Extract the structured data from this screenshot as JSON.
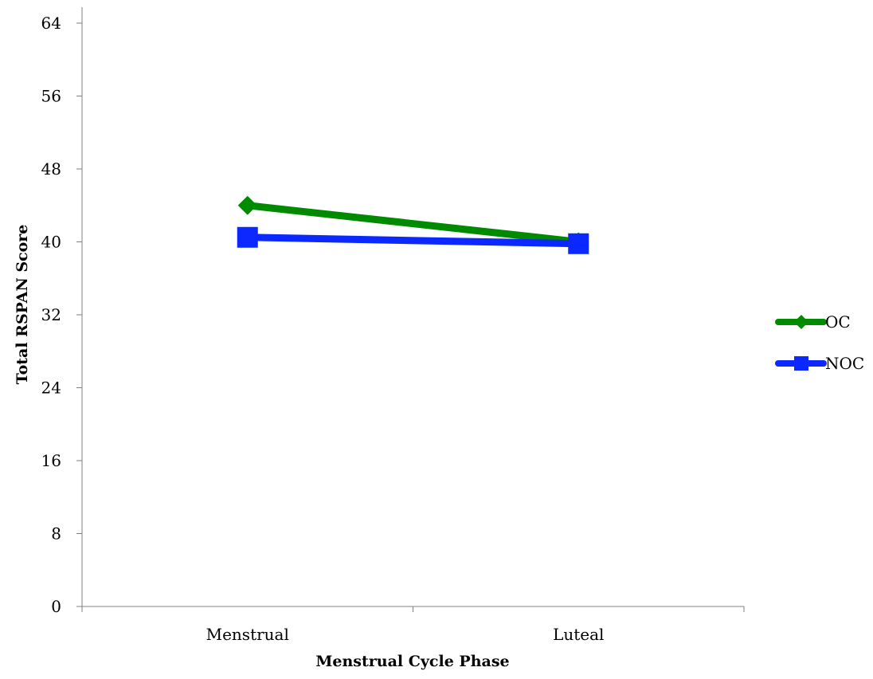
{
  "chart_data": {
    "type": "line",
    "title": "",
    "xlabel": "Menstrual Cycle Phase",
    "ylabel": "Total RSPAN Score",
    "categories": [
      "Menstrual",
      "Luteal"
    ],
    "ylim": [
      0,
      64
    ],
    "yticks": [
      0,
      8,
      16,
      24,
      32,
      40,
      48,
      56,
      64
    ],
    "grid": false,
    "legend": "right",
    "series": [
      {
        "name": "OC",
        "values": [
          44.0,
          40.0
        ],
        "color": "#008a00",
        "marker": "diamond"
      },
      {
        "name": "NOC",
        "values": [
          40.5,
          39.8
        ],
        "color": "#0a28ff",
        "marker": "square"
      }
    ]
  }
}
